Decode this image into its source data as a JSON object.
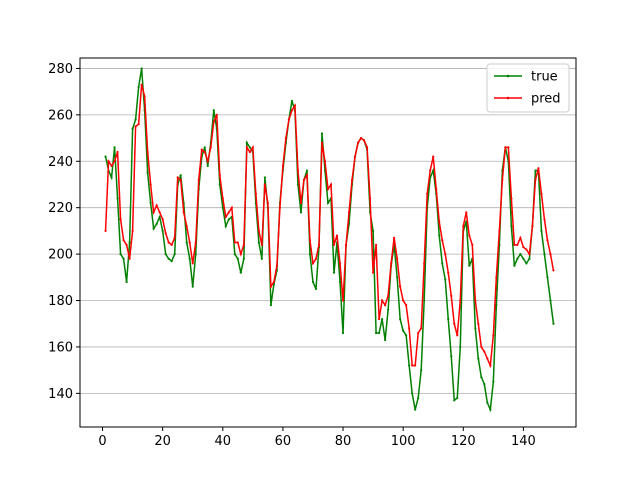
{
  "chart_data": {
    "type": "line",
    "title": "",
    "xlabel": "",
    "ylabel": "",
    "xlim": [
      -7.5,
      157.5
    ],
    "ylim": [
      125.5,
      284.5
    ],
    "xticks": [
      0,
      20,
      40,
      60,
      80,
      100,
      120,
      140
    ],
    "yticks": [
      140,
      160,
      180,
      200,
      220,
      240,
      260,
      280
    ],
    "grid": "y",
    "legend_position": "top-right",
    "series": [
      {
        "name": "true",
        "color": "#008000",
        "marker": "dot",
        "points": [
          [
            1,
            242
          ],
          [
            2,
            236
          ],
          [
            3,
            233
          ],
          [
            4,
            246
          ],
          [
            5,
            224
          ],
          [
            6,
            200
          ],
          [
            7,
            198
          ],
          [
            8,
            188
          ],
          [
            9,
            205
          ],
          [
            10,
            254
          ],
          [
            11,
            258
          ],
          [
            12,
            272
          ],
          [
            13,
            280
          ],
          [
            14,
            262
          ],
          [
            15,
            235
          ],
          [
            16,
            222
          ],
          [
            17,
            211
          ],
          [
            18,
            213
          ],
          [
            19,
            216
          ],
          [
            20,
            210
          ],
          [
            21,
            200
          ],
          [
            22,
            198
          ],
          [
            23,
            197
          ],
          [
            24,
            200
          ],
          [
            25,
            230
          ],
          [
            26,
            234
          ],
          [
            27,
            222
          ],
          [
            28,
            205
          ],
          [
            29,
            198
          ],
          [
            30,
            186
          ],
          [
            31,
            200
          ],
          [
            32,
            228
          ],
          [
            33,
            242
          ],
          [
            34,
            246
          ],
          [
            35,
            238
          ],
          [
            36,
            248
          ],
          [
            37,
            262
          ],
          [
            38,
            254
          ],
          [
            39,
            230
          ],
          [
            40,
            220
          ],
          [
            41,
            212
          ],
          [
            42,
            215
          ],
          [
            43,
            216
          ],
          [
            44,
            200
          ],
          [
            45,
            198
          ],
          [
            46,
            192
          ],
          [
            47,
            198
          ],
          [
            48,
            248
          ],
          [
            49,
            246
          ],
          [
            50,
            244
          ],
          [
            51,
            222
          ],
          [
            52,
            205
          ],
          [
            53,
            198
          ],
          [
            54,
            233
          ],
          [
            55,
            220
          ],
          [
            56,
            178
          ],
          [
            57,
            187
          ],
          [
            58,
            193
          ],
          [
            59,
            222
          ],
          [
            60,
            236
          ],
          [
            61,
            248
          ],
          [
            62,
            258
          ],
          [
            63,
            266
          ],
          [
            64,
            262
          ],
          [
            65,
            230
          ],
          [
            66,
            218
          ],
          [
            67,
            232
          ],
          [
            68,
            236
          ],
          [
            69,
            200
          ],
          [
            70,
            188
          ],
          [
            71,
            185
          ],
          [
            72,
            203
          ],
          [
            73,
            252
          ],
          [
            74,
            236
          ],
          [
            75,
            222
          ],
          [
            76,
            224
          ],
          [
            77,
            192
          ],
          [
            78,
            205
          ],
          [
            79,
            188
          ],
          [
            80,
            166
          ],
          [
            81,
            204
          ],
          [
            82,
            213
          ],
          [
            83,
            230
          ],
          [
            84,
            242
          ],
          [
            85,
            248
          ],
          [
            86,
            250
          ],
          [
            87,
            249
          ],
          [
            88,
            245
          ],
          [
            89,
            218
          ],
          [
            90,
            210
          ],
          [
            91,
            166
          ],
          [
            92,
            166
          ],
          [
            93,
            172
          ],
          [
            94,
            163
          ],
          [
            95,
            176
          ],
          [
            96,
            195
          ],
          [
            97,
            204
          ],
          [
            98,
            190
          ],
          [
            99,
            172
          ],
          [
            100,
            167
          ],
          [
            101,
            165
          ],
          [
            102,
            152
          ],
          [
            103,
            140
          ],
          [
            104,
            133
          ],
          [
            105,
            138
          ],
          [
            106,
            150
          ],
          [
            107,
            180
          ],
          [
            108,
            220
          ],
          [
            109,
            233
          ],
          [
            110,
            236
          ],
          [
            111,
            226
          ],
          [
            112,
            208
          ],
          [
            113,
            196
          ],
          [
            114,
            189
          ],
          [
            115,
            172
          ],
          [
            116,
            156
          ],
          [
            117,
            137
          ],
          [
            118,
            138
          ],
          [
            119,
            160
          ],
          [
            120,
            210
          ],
          [
            121,
            214
          ],
          [
            122,
            195
          ],
          [
            123,
            198
          ],
          [
            124,
            168
          ],
          [
            125,
            155
          ],
          [
            126,
            147
          ],
          [
            127,
            144
          ],
          [
            128,
            136
          ],
          [
            129,
            133
          ],
          [
            130,
            145
          ],
          [
            131,
            178
          ],
          [
            132,
            204
          ],
          [
            133,
            236
          ],
          [
            134,
            246
          ],
          [
            135,
            240
          ],
          [
            136,
            212
          ],
          [
            137,
            195
          ],
          [
            138,
            198
          ],
          [
            139,
            200
          ],
          [
            140,
            198
          ],
          [
            141,
            196
          ],
          [
            142,
            198
          ],
          [
            143,
            212
          ],
          [
            144,
            236
          ],
          [
            145,
            236
          ],
          [
            146,
            210
          ],
          [
            147,
            200
          ],
          [
            148,
            190
          ],
          [
            149,
            180
          ],
          [
            150,
            170
          ]
        ]
      },
      {
        "name": "pred",
        "color": "#ff0000",
        "marker": "dot",
        "points": [
          [
            1,
            210
          ],
          [
            2,
            240
          ],
          [
            3,
            238
          ],
          [
            4,
            240
          ],
          [
            5,
            244
          ],
          [
            6,
            215
          ],
          [
            7,
            206
          ],
          [
            8,
            204
          ],
          [
            9,
            198
          ],
          [
            10,
            210
          ],
          [
            11,
            255
          ],
          [
            12,
            256
          ],
          [
            13,
            273
          ],
          [
            14,
            268
          ],
          [
            15,
            244
          ],
          [
            16,
            230
          ],
          [
            17,
            218
          ],
          [
            18,
            221
          ],
          [
            19,
            218
          ],
          [
            20,
            215
          ],
          [
            21,
            209
          ],
          [
            22,
            205
          ],
          [
            23,
            204
          ],
          [
            24,
            207
          ],
          [
            25,
            233
          ],
          [
            26,
            232
          ],
          [
            27,
            218
          ],
          [
            28,
            212
          ],
          [
            29,
            205
          ],
          [
            30,
            196
          ],
          [
            31,
            205
          ],
          [
            32,
            232
          ],
          [
            33,
            245
          ],
          [
            34,
            244
          ],
          [
            35,
            240
          ],
          [
            36,
            246
          ],
          [
            37,
            257
          ],
          [
            38,
            260
          ],
          [
            39,
            234
          ],
          [
            40,
            224
          ],
          [
            41,
            216
          ],
          [
            42,
            218
          ],
          [
            43,
            220
          ],
          [
            44,
            205
          ],
          [
            45,
            205
          ],
          [
            46,
            200
          ],
          [
            47,
            204
          ],
          [
            48,
            246
          ],
          [
            49,
            244
          ],
          [
            50,
            246
          ],
          [
            51,
            226
          ],
          [
            52,
            210
          ],
          [
            53,
            204
          ],
          [
            54,
            230
          ],
          [
            55,
            222
          ],
          [
            56,
            186
          ],
          [
            57,
            188
          ],
          [
            58,
            195
          ],
          [
            59,
            220
          ],
          [
            60,
            238
          ],
          [
            61,
            250
          ],
          [
            62,
            258
          ],
          [
            63,
            262
          ],
          [
            64,
            264
          ],
          [
            65,
            236
          ],
          [
            66,
            222
          ],
          [
            67,
            232
          ],
          [
            68,
            234
          ],
          [
            69,
            206
          ],
          [
            70,
            196
          ],
          [
            71,
            198
          ],
          [
            72,
            204
          ],
          [
            73,
            248
          ],
          [
            74,
            240
          ],
          [
            75,
            228
          ],
          [
            76,
            230
          ],
          [
            77,
            204
          ],
          [
            78,
            208
          ],
          [
            79,
            196
          ],
          [
            80,
            180
          ],
          [
            81,
            204
          ],
          [
            82,
            218
          ],
          [
            83,
            232
          ],
          [
            84,
            242
          ],
          [
            85,
            248
          ],
          [
            86,
            250
          ],
          [
            87,
            249
          ],
          [
            88,
            246
          ],
          [
            89,
            224
          ],
          [
            90,
            192
          ],
          [
            91,
            204
          ],
          [
            92,
            172
          ],
          [
            93,
            180
          ],
          [
            94,
            178
          ],
          [
            95,
            182
          ],
          [
            96,
            196
          ],
          [
            97,
            207
          ],
          [
            98,
            198
          ],
          [
            99,
            186
          ],
          [
            100,
            180
          ],
          [
            101,
            178
          ],
          [
            102,
            168
          ],
          [
            103,
            152
          ],
          [
            104,
            152
          ],
          [
            105,
            166
          ],
          [
            106,
            168
          ],
          [
            107,
            196
          ],
          [
            108,
            226
          ],
          [
            109,
            236
          ],
          [
            110,
            242
          ],
          [
            111,
            228
          ],
          [
            112,
            214
          ],
          [
            113,
            206
          ],
          [
            114,
            200
          ],
          [
            115,
            192
          ],
          [
            116,
            182
          ],
          [
            117,
            170
          ],
          [
            118,
            165
          ],
          [
            119,
            180
          ],
          [
            120,
            212
          ],
          [
            121,
            218
          ],
          [
            122,
            208
          ],
          [
            123,
            204
          ],
          [
            124,
            180
          ],
          [
            125,
            170
          ],
          [
            126,
            160
          ],
          [
            127,
            158
          ],
          [
            128,
            155
          ],
          [
            129,
            152
          ],
          [
            130,
            165
          ],
          [
            131,
            190
          ],
          [
            132,
            210
          ],
          [
            133,
            232
          ],
          [
            134,
            246
          ],
          [
            135,
            246
          ],
          [
            136,
            224
          ],
          [
            137,
            204
          ],
          [
            138,
            204
          ],
          [
            139,
            207
          ],
          [
            140,
            203
          ],
          [
            141,
            202
          ],
          [
            142,
            200
          ],
          [
            143,
            212
          ],
          [
            144,
            232
          ],
          [
            145,
            237
          ],
          [
            146,
            226
          ],
          [
            147,
            215
          ],
          [
            148,
            206
          ],
          [
            149,
            200
          ],
          [
            150,
            193
          ]
        ]
      }
    ]
  }
}
